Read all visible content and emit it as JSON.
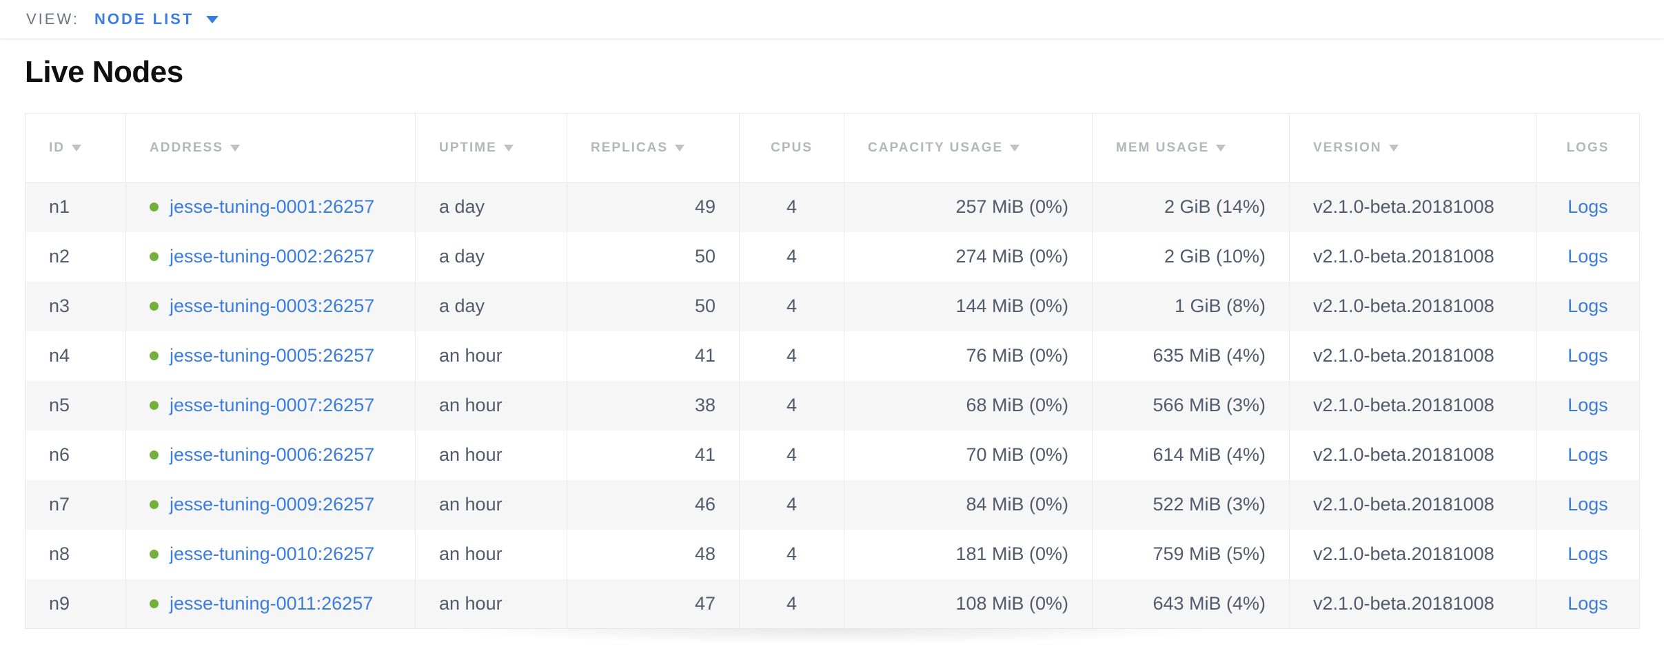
{
  "view_bar": {
    "label": "VIEW:",
    "selected": "NODE LIST"
  },
  "page": {
    "title": "Live Nodes"
  },
  "table": {
    "columns": [
      {
        "key": "id",
        "label": "ID",
        "sortable": true
      },
      {
        "key": "address",
        "label": "ADDRESS",
        "sortable": true
      },
      {
        "key": "uptime",
        "label": "UPTIME",
        "sortable": true
      },
      {
        "key": "replicas",
        "label": "REPLICAS",
        "sortable": true
      },
      {
        "key": "cpus",
        "label": "CPUS",
        "sortable": false
      },
      {
        "key": "capacity",
        "label": "CAPACITY USAGE",
        "sortable": true
      },
      {
        "key": "mem",
        "label": "MEM USAGE",
        "sortable": true
      },
      {
        "key": "version",
        "label": "VERSION",
        "sortable": true
      },
      {
        "key": "logs",
        "label": "LOGS",
        "sortable": false
      }
    ],
    "rows": [
      {
        "id": "n1",
        "status": "healthy",
        "address": "jesse-tuning-0001:26257",
        "uptime": "a day",
        "replicas": 49,
        "cpus": 4,
        "capacity": "257 MiB (0%)",
        "mem": "2 GiB (14%)",
        "version": "v2.1.0-beta.20181008",
        "logs": "Logs"
      },
      {
        "id": "n2",
        "status": "healthy",
        "address": "jesse-tuning-0002:26257",
        "uptime": "a day",
        "replicas": 50,
        "cpus": 4,
        "capacity": "274 MiB (0%)",
        "mem": "2 GiB (10%)",
        "version": "v2.1.0-beta.20181008",
        "logs": "Logs"
      },
      {
        "id": "n3",
        "status": "healthy",
        "address": "jesse-tuning-0003:26257",
        "uptime": "a day",
        "replicas": 50,
        "cpus": 4,
        "capacity": "144 MiB (0%)",
        "mem": "1 GiB (8%)",
        "version": "v2.1.0-beta.20181008",
        "logs": "Logs"
      },
      {
        "id": "n4",
        "status": "healthy",
        "address": "jesse-tuning-0005:26257",
        "uptime": "an hour",
        "replicas": 41,
        "cpus": 4,
        "capacity": "76 MiB (0%)",
        "mem": "635 MiB (4%)",
        "version": "v2.1.0-beta.20181008",
        "logs": "Logs"
      },
      {
        "id": "n5",
        "status": "healthy",
        "address": "jesse-tuning-0007:26257",
        "uptime": "an hour",
        "replicas": 38,
        "cpus": 4,
        "capacity": "68 MiB (0%)",
        "mem": "566 MiB (3%)",
        "version": "v2.1.0-beta.20181008",
        "logs": "Logs"
      },
      {
        "id": "n6",
        "status": "healthy",
        "address": "jesse-tuning-0006:26257",
        "uptime": "an hour",
        "replicas": 41,
        "cpus": 4,
        "capacity": "70 MiB (0%)",
        "mem": "614 MiB (4%)",
        "version": "v2.1.0-beta.20181008",
        "logs": "Logs"
      },
      {
        "id": "n7",
        "status": "healthy",
        "address": "jesse-tuning-0009:26257",
        "uptime": "an hour",
        "replicas": 46,
        "cpus": 4,
        "capacity": "84 MiB (0%)",
        "mem": "522 MiB (3%)",
        "version": "v2.1.0-beta.20181008",
        "logs": "Logs"
      },
      {
        "id": "n8",
        "status": "healthy",
        "address": "jesse-tuning-0010:26257",
        "uptime": "an hour",
        "replicas": 48,
        "cpus": 4,
        "capacity": "181 MiB (0%)",
        "mem": "759 MiB (5%)",
        "version": "v2.1.0-beta.20181008",
        "logs": "Logs"
      },
      {
        "id": "n9",
        "status": "healthy",
        "address": "jesse-tuning-0011:26257",
        "uptime": "an hour",
        "replicas": 47,
        "cpus": 4,
        "capacity": "108 MiB (0%)",
        "mem": "643 MiB (4%)",
        "version": "v2.1.0-beta.20181008",
        "logs": "Logs"
      }
    ]
  },
  "colors": {
    "link": "#3b7ce0",
    "status_healthy": "#73b03c",
    "header_text": "#b3b6ba",
    "body_text": "#515b6e"
  }
}
